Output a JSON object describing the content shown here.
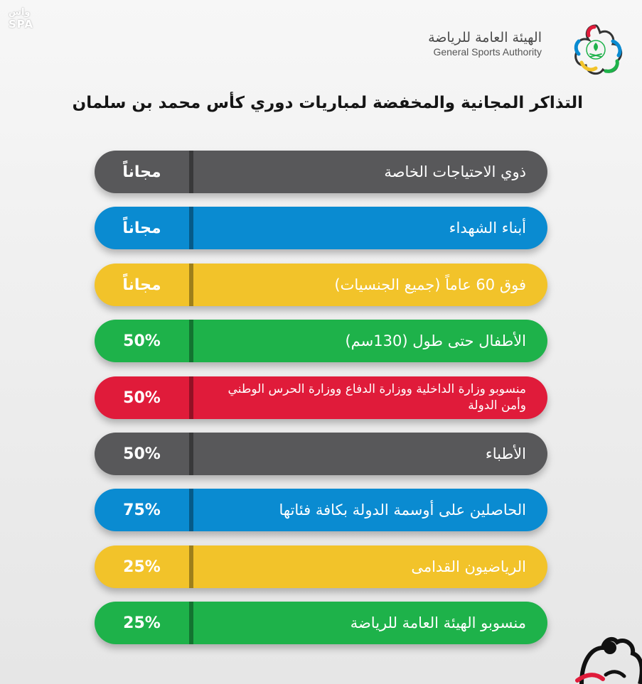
{
  "watermark": {
    "ar": "واس",
    "en": "SPA"
  },
  "logo": {
    "ar": "الهيئة العامة للرياضة",
    "en": "General Sports Authority"
  },
  "title": "التذاكر المجانية والمخفضة لمباريات دوري كأس محمد بن سلمان",
  "colors": {
    "gray": "#58585a",
    "blue": "#0a8bd1",
    "yellow": "#f2c32a",
    "green": "#1eb24a",
    "red": "#e01b3a"
  },
  "rows": [
    {
      "label": "ذوي الاحتياجات الخاصة",
      "value": "مجاناً",
      "color": "#58585a"
    },
    {
      "label": "أبناء الشهداء",
      "value": "مجاناً",
      "color": "#0a8bd1"
    },
    {
      "label": "فوق 60 عاماً (جميع الجنسيات)",
      "value": "مجاناً",
      "color": "#f2c32a"
    },
    {
      "label": "الأطفال حتى طول (130سم)",
      "value": "50%",
      "color": "#1eb24a"
    },
    {
      "label": "منسوبو وزارة الداخلية ووزارة الدفاع ووزارة الحرس الوطني وأمن الدولة",
      "value": "50%",
      "color": "#e01b3a"
    },
    {
      "label": "الأطباء",
      "value": "50%",
      "color": "#58585a"
    },
    {
      "label": "الحاصلين على أوسمة الدولة بكافة فئاتها",
      "value": "75%",
      "color": "#0a8bd1"
    },
    {
      "label": "الرياضيون القدامى",
      "value": "25%",
      "color": "#f2c32a"
    },
    {
      "label": "منسوبو الهيئة العامة للرياضة",
      "value": "25%",
      "color": "#1eb24a"
    }
  ]
}
